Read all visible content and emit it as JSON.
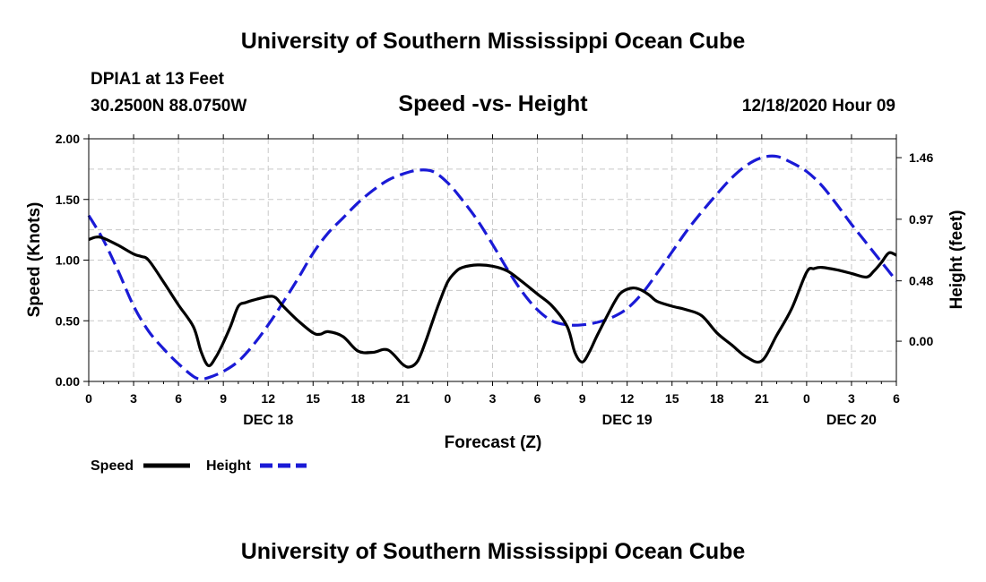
{
  "header": {
    "title": "University of Southern Mississippi Ocean Cube",
    "station": "DPIA1 at 13 Feet",
    "coords": "30.2500N 88.0750W",
    "subtitle": "Speed -vs- Height",
    "datetime": "12/18/2020 Hour 09"
  },
  "footer": {
    "title": "University of Southern Mississippi Ocean Cube"
  },
  "chart_data": {
    "type": "line",
    "title": "Speed -vs- Height",
    "xlabel": "Forecast (Z)",
    "ylabel": "Speed (Knots)",
    "y2label": "Height (feet)",
    "x_unit": "hours since DEC 18 00Z",
    "xlim": [
      0,
      54
    ],
    "ylim": [
      0,
      2
    ],
    "y2lim": [
      -0.32,
      1.61
    ],
    "grid": true,
    "x_ticks": [
      0,
      3,
      6,
      9,
      12,
      15,
      18,
      21,
      24,
      27,
      30,
      33,
      36,
      39,
      42,
      45,
      48,
      51,
      54
    ],
    "x_tick_labels": [
      "0",
      "3",
      "6",
      "9",
      "12",
      "15",
      "18",
      "21",
      "0",
      "3",
      "6",
      "9",
      "12",
      "15",
      "18",
      "21",
      "0",
      "3",
      "6"
    ],
    "date_labels": [
      {
        "x": 12,
        "label": "DEC 18"
      },
      {
        "x": 36,
        "label": "DEC 19"
      },
      {
        "x": 51,
        "label": "DEC 20"
      }
    ],
    "y_ticks": [
      0,
      0.5,
      1,
      1.5,
      2
    ],
    "y_tick_labels": [
      "0.00",
      "0.50",
      "1.00",
      "1.50",
      "2.00"
    ],
    "y2_ticks": [
      0,
      0.48,
      0.97,
      1.46
    ],
    "y2_tick_labels": [
      "0.00",
      "0.48",
      "0.97",
      "1.46"
    ],
    "legend_position": "bottom-left",
    "series": [
      {
        "name": "Speed",
        "axis": "left",
        "color": "#000000",
        "style": "solid",
        "x": [
          0,
          0.5,
          1,
          2,
          3,
          3.5,
          4,
          5,
          6,
          7,
          7.5,
          8,
          8.5,
          9,
          9.5,
          10,
          10.5,
          11,
          12,
          12.5,
          13,
          14,
          15,
          15.5,
          16,
          17,
          18,
          19,
          20,
          21,
          21.5,
          22,
          22.5,
          23,
          23.5,
          24,
          24.5,
          25,
          26,
          27,
          28,
          29,
          30,
          31,
          32,
          32.5,
          33,
          33.5,
          34,
          35,
          35.5,
          36,
          36.5,
          37,
          37.5,
          38,
          39,
          40,
          41,
          42,
          43,
          44,
          45,
          46,
          47,
          48,
          48.5,
          49,
          50,
          51,
          52,
          52.5,
          53,
          53.5,
          54
        ],
        "values": [
          1.17,
          1.19,
          1.18,
          1.12,
          1.05,
          1.03,
          1.0,
          0.82,
          0.63,
          0.45,
          0.25,
          0.13,
          0.2,
          0.32,
          0.46,
          0.62,
          0.65,
          0.67,
          0.7,
          0.69,
          0.62,
          0.5,
          0.4,
          0.39,
          0.41,
          0.37,
          0.25,
          0.24,
          0.26,
          0.14,
          0.12,
          0.17,
          0.32,
          0.5,
          0.67,
          0.82,
          0.9,
          0.94,
          0.96,
          0.95,
          0.91,
          0.82,
          0.72,
          0.62,
          0.45,
          0.24,
          0.16,
          0.25,
          0.38,
          0.62,
          0.72,
          0.76,
          0.77,
          0.75,
          0.71,
          0.66,
          0.62,
          0.59,
          0.54,
          0.4,
          0.3,
          0.2,
          0.17,
          0.38,
          0.6,
          0.9,
          0.93,
          0.94,
          0.92,
          0.89,
          0.86,
          0.91,
          0.98,
          1.06,
          1.04
        ],
        "comment": "x of last points: 50.5=0.86 shown at 52, 53=0.98"
      },
      {
        "name": "Height",
        "axis": "right",
        "color": "#1a1ad6",
        "style": "dashed",
        "x": [
          0,
          1,
          2,
          3,
          4,
          5,
          6,
          7,
          7.5,
          8,
          9,
          10,
          11,
          12,
          13,
          14,
          15,
          16,
          17,
          18,
          19,
          20,
          21,
          22,
          23,
          24,
          25,
          26,
          27,
          28,
          29,
          30,
          31,
          32,
          33,
          34,
          35,
          36,
          37,
          38,
          39,
          40,
          41,
          42,
          43,
          44,
          45,
          46,
          47,
          48,
          49,
          50,
          51,
          52,
          53,
          54
        ],
        "values": [
          1.0,
          0.8,
          0.55,
          0.28,
          0.08,
          -0.06,
          -0.18,
          -0.28,
          -0.3,
          -0.29,
          -0.24,
          -0.16,
          -0.03,
          0.13,
          0.31,
          0.5,
          0.7,
          0.86,
          0.98,
          1.1,
          1.2,
          1.28,
          1.33,
          1.36,
          1.35,
          1.26,
          1.12,
          0.96,
          0.77,
          0.57,
          0.39,
          0.25,
          0.16,
          0.13,
          0.13,
          0.15,
          0.19,
          0.26,
          0.38,
          0.54,
          0.71,
          0.88,
          1.03,
          1.17,
          1.3,
          1.4,
          1.46,
          1.47,
          1.42,
          1.35,
          1.24,
          1.09,
          0.93,
          0.78,
          0.63,
          0.48
        ]
      }
    ]
  }
}
